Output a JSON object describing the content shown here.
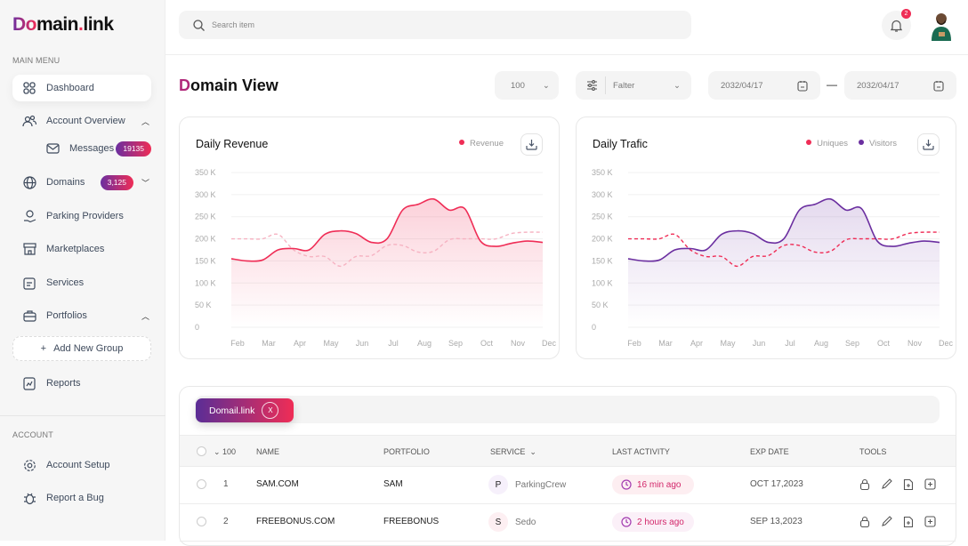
{
  "brand": {
    "logo_prefix": "Do",
    "logo_main": "main",
    "logo_dot": ".",
    "logo_suffix": "link"
  },
  "sidebar": {
    "main_menu_label": "MAIN MENU",
    "items": [
      {
        "label": "Dashboard",
        "icon": "grid-icon"
      },
      {
        "label": "Account Overview",
        "icon": "users-icon"
      },
      {
        "label": "Messages",
        "icon": "mail-icon",
        "badge": "19135"
      },
      {
        "label": "Domains",
        "icon": "globe-icon",
        "badge": "3,125"
      },
      {
        "label": "Parking Providers",
        "icon": "hand-coin-icon"
      },
      {
        "label": "Marketplaces",
        "icon": "store-icon"
      },
      {
        "label": "Services",
        "icon": "clipboard-icon"
      },
      {
        "label": "Portfolios",
        "icon": "briefcase-icon"
      }
    ],
    "add_group": "Add New Group",
    "reports": "Reports",
    "account_label": "ACCOUNT",
    "account_items": [
      {
        "label": "Account Setup",
        "icon": "gear-icon"
      },
      {
        "label": "Report a Bug",
        "icon": "bug-icon"
      }
    ]
  },
  "header": {
    "search_placeholder": "Search item",
    "notifications": "2"
  },
  "page": {
    "title_first": "D",
    "title_rest": "omain View",
    "page_size": "100",
    "filter": "Falter",
    "date_from": "2032/04/17",
    "date_sep": "—",
    "date_to": "2032/04/17"
  },
  "colors": {
    "accent_red": "#ef2d56",
    "accent_purple": "#6b2fa0"
  },
  "chart_data": [
    {
      "type": "area",
      "title": "Daily Revenue",
      "ylim": [
        0,
        350000
      ],
      "yticks": [
        "350 K",
        "300 K",
        "250 K",
        "200 K",
        "150 K",
        "100 K",
        "50 K",
        "0"
      ],
      "categories": [
        "Feb",
        "Mar",
        "Apr",
        "May",
        "Jun",
        "Jul",
        "Aug",
        "Sep",
        "Oct",
        "Nov",
        "Dec"
      ],
      "x": [
        "Feb",
        "Feb 15",
        "Mar",
        "Mar 15",
        "Apr",
        "Apr 15",
        "May",
        "May 15",
        "Jun",
        "Jun 15",
        "Jul",
        "Jul 15",
        "Aug",
        "Aug 15",
        "Sep",
        "Sep 15",
        "Oct",
        "Oct 15",
        "Nov",
        "Nov 15",
        "Dec"
      ],
      "series": [
        {
          "name": "Revenue",
          "color": "#ef2d56",
          "style": "solid",
          "values": [
            155000,
            150000,
            152000,
            175000,
            178000,
            175000,
            210000,
            218000,
            212000,
            192000,
            200000,
            265000,
            278000,
            290000,
            265000,
            268000,
            195000,
            183000,
            190000,
            195000,
            192000
          ]
        },
        {
          "color": "#f6b3c2",
          "style": "dashed",
          "values": [
            200000,
            200000,
            200000,
            210000,
            175000,
            160000,
            160000,
            138000,
            160000,
            162000,
            185000,
            185000,
            170000,
            172000,
            198000,
            200000,
            200000,
            200000,
            212000,
            215000,
            215000
          ]
        }
      ]
    },
    {
      "type": "area",
      "title": "Daily Trafic",
      "ylim": [
        0,
        350000
      ],
      "yticks": [
        "350 K",
        "300 K",
        "250 K",
        "200 K",
        "150 K",
        "100 K",
        "50 K",
        "0"
      ],
      "categories": [
        "Feb",
        "Mar",
        "Apr",
        "May",
        "Jun",
        "Jul",
        "Aug",
        "Sep",
        "Oct",
        "Nov",
        "Dec"
      ],
      "x": [
        "Feb",
        "Feb 15",
        "Mar",
        "Mar 15",
        "Apr",
        "Apr 15",
        "May",
        "May 15",
        "Jun",
        "Jun 15",
        "Jul",
        "Jul 15",
        "Aug",
        "Aug 15",
        "Sep",
        "Sep 15",
        "Oct",
        "Oct 15",
        "Nov",
        "Nov 15",
        "Dec"
      ],
      "series": [
        {
          "name": "Visitors",
          "color": "#6b2fa0",
          "style": "solid",
          "values": [
            155000,
            150000,
            152000,
            175000,
            178000,
            175000,
            210000,
            218000,
            212000,
            192000,
            200000,
            265000,
            278000,
            290000,
            265000,
            268000,
            195000,
            183000,
            190000,
            195000,
            192000
          ]
        },
        {
          "name": "Uniques",
          "color": "#ef2d56",
          "style": "dashed",
          "values": [
            200000,
            200000,
            200000,
            210000,
            175000,
            160000,
            160000,
            138000,
            160000,
            162000,
            185000,
            185000,
            170000,
            172000,
            198000,
            200000,
            200000,
            200000,
            212000,
            215000,
            215000
          ]
        }
      ]
    }
  ],
  "table": {
    "chip": "Domail.link",
    "chip_close": "X",
    "columns": {
      "count": "100",
      "name": "NAME",
      "portfolio": "PORTFOLIO",
      "service": "SERVICE",
      "last_activity": "LAST ACTIVITY",
      "exp_date": "EXP DATE",
      "tools": "TOOLS"
    },
    "rows": [
      {
        "num": "1",
        "name": "SAM.COM",
        "portfolio": "SAM",
        "service_letter": "P",
        "service": "ParkingCrew",
        "last_activity": "16 min ago",
        "exp_date": "OCT 17,2023"
      },
      {
        "num": "2",
        "name": "FREEBONUS.COM",
        "portfolio": "FREEBONUS",
        "service_letter": "S",
        "service": "Sedo",
        "last_activity": "2 hours ago",
        "exp_date": "SEP 13,2023"
      }
    ]
  }
}
